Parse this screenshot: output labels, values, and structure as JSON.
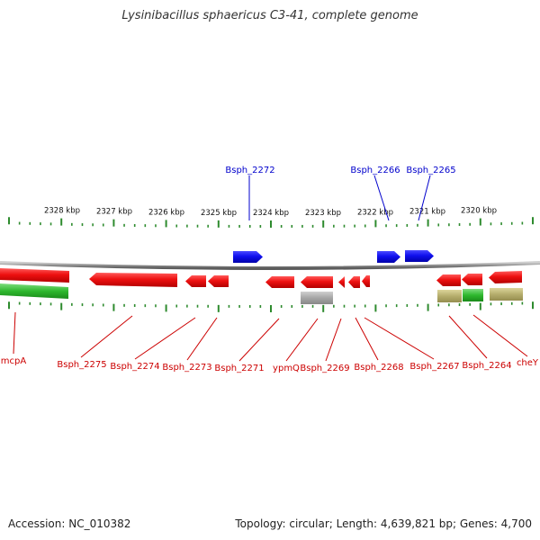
{
  "title": "Lysinibacillus sphaericus C3-41, complete genome",
  "accession": "Accession: NC_010382",
  "topology": "Topology: circular; Length: 4,639,821 bp; Genes: 4,700",
  "colors": {
    "forward_gene": "#1414e6",
    "reverse_gene": "#e81010",
    "reverse_label": "#cc0000",
    "forward_label": "#0000cc",
    "tick": "#2e8b2e",
    "backbone": "#888888",
    "green_track": "#2ea82e",
    "gray_track": "#a8a8a8",
    "olive_track": "#b5ad6c"
  },
  "ruler_labels": [
    "2328 kbp",
    "2327 kbp",
    "2326 kbp",
    "2325 kbp",
    "2324 kbp",
    "2323 kbp",
    "2322 kbp",
    "2321 kbp",
    "2320 kbp"
  ],
  "forward_gene_labels": [
    "Bsph_2272",
    "Bsph_2266",
    "Bsph_2265"
  ],
  "reverse_gene_labels": [
    "mcpA",
    "Bsph_2275",
    "Bsph_2274",
    "Bsph_2273",
    "Bsph_2271",
    "ypmQ",
    "Bsph_2269",
    "Bsph_2268",
    "Bsph_2267",
    "Bsph_2264",
    "cheY"
  ]
}
